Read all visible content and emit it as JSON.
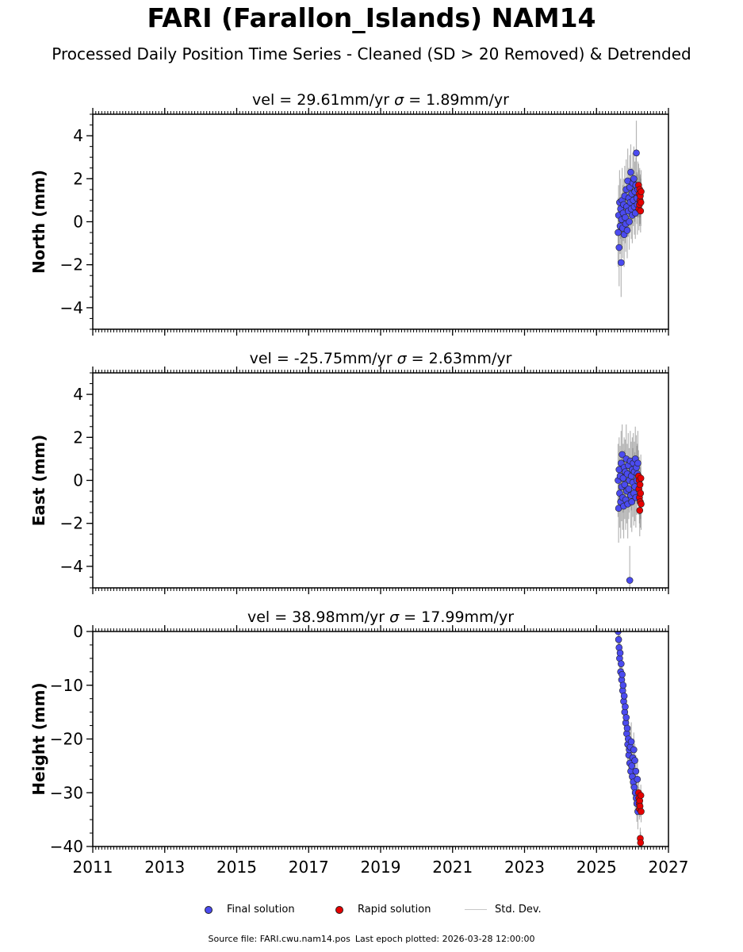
{
  "title": "FARI (Farallon_Islands) NAM14",
  "subtitle": "Processed Daily Position Time Series - Cleaned (SD > 20 Removed) & Detrended",
  "legend": {
    "final_label": "Final solution",
    "rapid_label": "Rapid solution",
    "std_label": "Std. Dev."
  },
  "footer": {
    "source": "Source file: FARI.cwu.nam14.pos",
    "last_epoch": "Last epoch plotted: 2026-03-28 12:00:00"
  },
  "colors": {
    "final": "#4b4bf0",
    "rapid": "#e60000",
    "std": "#7a7a7a",
    "std_legend": "#c8c8c8"
  },
  "chart_data": [
    {
      "type": "scatter",
      "title_prefix": "vel = 29.61mm/yr",
      "title_sigma": "σ",
      "title_suffix": " = 1.89mm/yr",
      "ylabel": "North (mm)",
      "xlim": [
        2011,
        2027
      ],
      "ylim": [
        -5,
        5
      ],
      "yticks": [
        -4,
        -2,
        0,
        2,
        4
      ],
      "ytick_labels": [
        "−4",
        "−2",
        "0",
        "2",
        "4"
      ],
      "xticks": [
        2011,
        2013,
        2015,
        2017,
        2019,
        2021,
        2023,
        2025,
        2027
      ],
      "show_xtick_labels": false,
      "final_range": [
        2025.6,
        2026.15
      ],
      "rapid_range": [
        2026.17,
        2026.24
      ],
      "final_values": [
        -0.5,
        0.3,
        -1.2,
        0.9,
        -0.2,
        0.6,
        -1.9,
        0.1,
        1.0,
        -0.3,
        0.4,
        0.8,
        -0.6,
        1.2,
        0.2,
        -0.1,
        1.5,
        0.7,
        -0.4,
        1.9,
        0.5,
        1.1,
        0.0,
        1.6,
        0.9,
        2.3,
        0.6,
        1.3,
        0.3,
        1.8,
        1.0,
        2.0,
        0.7,
        1.4,
        0.4,
        1.7,
        3.2,
        1.1,
        0.8,
        1.5
      ],
      "final_sd": [
        1.6,
        1.4,
        1.8,
        1.5,
        1.3,
        1.4,
        1.6,
        1.2,
        1.5,
        1.4,
        1.3,
        1.2,
        1.5,
        1.4,
        1.2,
        1.3,
        1.4,
        1.2,
        1.3,
        1.5,
        1.2,
        1.4,
        1.3,
        1.5,
        1.2,
        1.3,
        1.4,
        1.2,
        1.3,
        1.4,
        1.2,
        1.5,
        1.3,
        1.4,
        1.2,
        1.3,
        1.5,
        1.2,
        1.4,
        1.3
      ],
      "rapid_values": [
        1.7,
        0.6,
        1.3,
        0.8,
        1.5,
        1.0,
        1.2,
        0.5,
        0.9,
        1.4
      ],
      "rapid_sd": [
        1.0,
        1.0,
        1.1,
        1.0,
        1.0,
        1.1,
        1.0,
        1.0,
        1.1,
        1.0
      ]
    },
    {
      "type": "scatter",
      "title_prefix": "vel = -25.75mm/yr",
      "title_sigma": "σ",
      "title_suffix": " = 2.63mm/yr",
      "ylabel": "East (mm)",
      "xlim": [
        2011,
        2027
      ],
      "ylim": [
        -5,
        5
      ],
      "yticks": [
        -4,
        -2,
        0,
        2,
        4
      ],
      "ytick_labels": [
        "−4",
        "−2",
        "0",
        "2",
        "4"
      ],
      "xticks": [
        2011,
        2013,
        2015,
        2017,
        2019,
        2021,
        2023,
        2025,
        2027
      ],
      "show_xtick_labels": false,
      "final_range": [
        2025.6,
        2026.15
      ],
      "rapid_range": [
        2026.17,
        2026.24
      ],
      "final_values": [
        0.0,
        -1.3,
        0.5,
        -0.6,
        0.2,
        -1.0,
        0.8,
        -0.3,
        1.2,
        -0.8,
        0.1,
        -1.2,
        0.6,
        -0.2,
        0.4,
        -0.9,
        1.0,
        -0.5,
        0.3,
        -1.1,
        0.7,
        -0.4,
        0.0,
        -4.65,
        0.9,
        -0.7,
        0.2,
        -1.0,
        0.5,
        -0.1,
        0.8,
        -0.6,
        0.4,
        -0.3,
        1.0,
        -0.8,
        0.6,
        0.0,
        0.3,
        0.8
      ],
      "final_sd": [
        1.7,
        1.6,
        1.5,
        1.6,
        1.4,
        1.7,
        1.5,
        1.6,
        1.4,
        1.5,
        1.6,
        1.5,
        1.4,
        1.6,
        1.5,
        1.4,
        1.6,
        1.5,
        1.4,
        1.6,
        1.5,
        1.4,
        1.5,
        1.6,
        1.4,
        1.5,
        1.6,
        1.4,
        1.5,
        1.6,
        1.4,
        1.5,
        1.4,
        1.6,
        1.5,
        1.4,
        1.5,
        1.6,
        1.4,
        1.5
      ],
      "rapid_values": [
        0.2,
        -0.4,
        0.0,
        -0.8,
        -1.4,
        -0.2,
        -1.0,
        -0.6,
        0.1,
        -1.1
      ],
      "rapid_sd": [
        1.2,
        1.2,
        1.1,
        1.2,
        1.2,
        1.1,
        1.2,
        1.2,
        1.1,
        1.2
      ]
    },
    {
      "type": "scatter",
      "title_prefix": "vel = 38.98mm/yr",
      "title_sigma": "σ",
      "title_suffix": " = 17.99mm/yr",
      "ylabel": "Height (mm)",
      "xlim": [
        2011,
        2027
      ],
      "ylim": [
        -40,
        0
      ],
      "yticks": [
        -40,
        -30,
        -20,
        -10,
        0
      ],
      "ytick_labels": [
        "−40",
        "−30",
        "−20",
        "−10",
        "0"
      ],
      "xticks": [
        2011,
        2013,
        2015,
        2017,
        2019,
        2021,
        2023,
        2025,
        2027
      ],
      "xtick_labels": [
        "2011",
        "2013",
        "2015",
        "2017",
        "2019",
        "2021",
        "2023",
        "2025",
        "2027"
      ],
      "show_xtick_labels": true,
      "final_range": [
        2025.6,
        2026.15
      ],
      "rapid_range": [
        2026.17,
        2026.24
      ],
      "final_values": [
        0.0,
        -1.5,
        -3.0,
        -5.0,
        -4.0,
        -7.5,
        -6.0,
        -9.0,
        -8.0,
        -11.0,
        -10.0,
        -13.0,
        -12.0,
        -15.0,
        -14.0,
        -17.0,
        -16.0,
        -19.0,
        -18.0,
        -21.0,
        -20.0,
        -23.0,
        -22.0,
        -24.5,
        -21.5,
        -26.0,
        -20.5,
        -25.0,
        -27.0,
        -23.5,
        -28.0,
        -22.0,
        -29.0,
        -24.0,
        -30.0,
        -26.0,
        -31.0,
        -32.0,
        -27.5,
        -33.5
      ],
      "final_sd": [
        3.0,
        3.2,
        3.5,
        3.0,
        3.4,
        3.2,
        3.6,
        3.0,
        3.3,
        3.5,
        3.1,
        3.4,
        3.0,
        3.2,
        3.5,
        3.1,
        3.3,
        3.0,
        3.4,
        3.2,
        3.5,
        3.1,
        3.3,
        3.0,
        3.4,
        3.2,
        3.6,
        3.1,
        3.3,
        3.0,
        3.4,
        3.2,
        3.5,
        3.1,
        3.3,
        3.0,
        3.2,
        3.4,
        3.1,
        3.3
      ],
      "rapid_values": [
        -30.0,
        -31.0,
        -32.0,
        -33.0,
        -31.5,
        -32.5,
        -38.5,
        -39.3,
        -30.5,
        -33.5
      ],
      "rapid_sd": [
        2.0,
        2.0,
        2.0,
        2.0,
        2.0,
        2.0,
        2.0,
        2.0,
        2.0,
        2.0
      ]
    }
  ]
}
